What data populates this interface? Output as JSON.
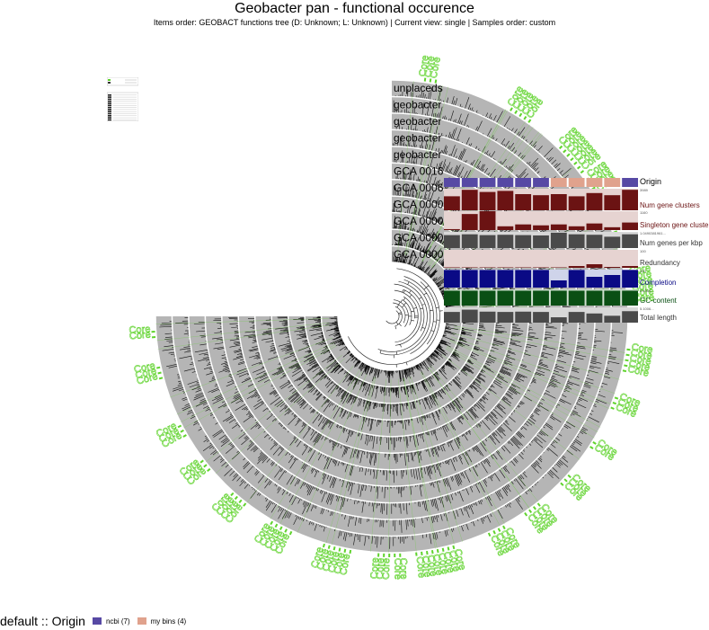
{
  "page": {
    "title": "Geobacter pan - functional occurence",
    "subtitle": "Items order: GEOBACT functions tree (D: Unknown; L: Unknown) | Current view: single | Samples order: custom"
  },
  "legend": {
    "title": "default :: Origin",
    "items": [
      {
        "label": "ncbi (7)",
        "color": "#5749a4"
      },
      {
        "label": "my bins (4)",
        "color": "#e0a28d"
      }
    ]
  },
  "colors": {
    "ring": "#b5b5b5",
    "core": "#5fd32c",
    "origin_ncbi": "#5749a4",
    "origin_bins": "#e0a28d",
    "maroon": "#6b1313",
    "navy": "#0a0a85",
    "green": "#0a4f14",
    "grey_bar": "#4a4a4a"
  },
  "chart_data": {
    "type": "radial-phylogram",
    "layers": [
      "unplaceds",
      "geobacter",
      "geobacter",
      "geobacter",
      "geobacter",
      "GCA 0016",
      "GCA 0006",
      "GCA 0000",
      "GCA 0000",
      "GCA 0000",
      "GCA 0000"
    ],
    "core_label": "Core",
    "core_label_count": 56,
    "bar_layers": [
      {
        "name": "Origin",
        "max": "",
        "values": [
          1,
          1,
          1,
          1,
          1,
          1,
          0,
          0,
          0,
          0,
          1
        ],
        "color": "#5749a4"
      },
      {
        "name": "Num gene clusters",
        "max": "3989",
        "values": [
          0.65,
          0.95,
          0.85,
          0.9,
          0.75,
          0.7,
          0.75,
          0.65,
          0.8,
          0.7,
          0.95
        ],
        "color": "#6b1313"
      },
      {
        "name": "Singleton gene clusters",
        "max": "1160",
        "values": [
          0.05,
          0.85,
          1.0,
          0.2,
          0.3,
          0.25,
          0.3,
          0.2,
          0.35,
          0.15,
          0.4
        ],
        "color": "#6b1313"
      },
      {
        "name": "Num genes per kbp",
        "max": "1.0490381961...",
        "values": [
          0.8,
          0.85,
          0.8,
          0.82,
          0.8,
          0.78,
          0.95,
          0.85,
          0.82,
          0.7,
          0.85
        ],
        "color": "#4a4a4a"
      },
      {
        "name": "Redundancy",
        "max": "100",
        "values": [
          0,
          0,
          0,
          0,
          0,
          0,
          0,
          0.1,
          0.2,
          0.05,
          0.1
        ],
        "color": "#6b1313"
      },
      {
        "name": "Completion",
        "max": "100",
        "values": [
          0.98,
          0.98,
          0.98,
          0.98,
          0.98,
          0.98,
          0.4,
          0.98,
          0.6,
          0.7,
          0.98
        ],
        "color": "#0a0a85"
      },
      {
        "name": "GC-content",
        "max": "0.6354...",
        "values": [
          0.92,
          0.92,
          0.92,
          0.92,
          0.92,
          0.92,
          0.92,
          0.92,
          0.92,
          0.92,
          0.92
        ],
        "color": "#0a4f14"
      },
      {
        "name": "Total length",
        "max": "5.1006...",
        "values": [
          0.7,
          0.85,
          0.72,
          0.7,
          0.72,
          0.7,
          0.35,
          0.7,
          0.6,
          0.45,
          0.75
        ],
        "color": "#4a4a4a"
      }
    ]
  }
}
